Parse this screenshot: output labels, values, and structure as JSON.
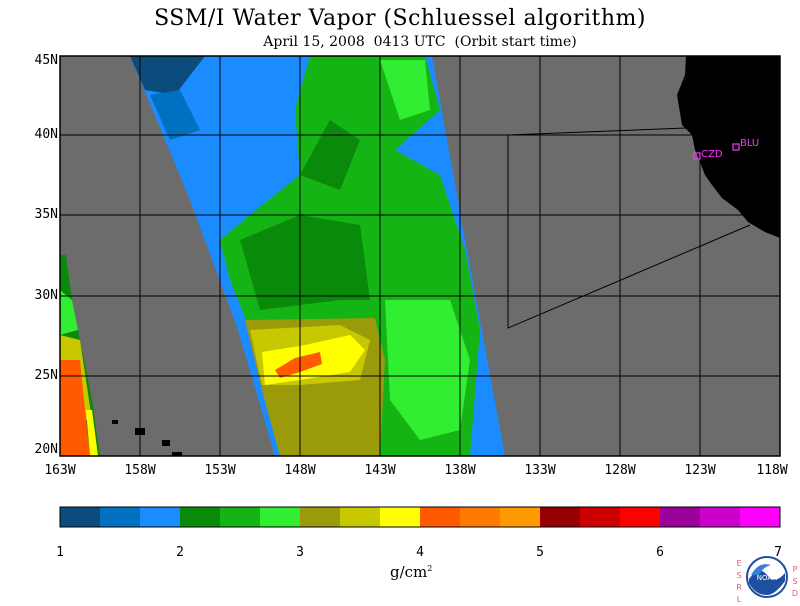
{
  "title": "SSM/I Water Vapor (Schluessel algorithm)",
  "subtitle": "April 15, 2008  0413 UTC  (Orbit start time)",
  "lat_labels": [
    "45N",
    "40N",
    "35N",
    "30N",
    "25N",
    "20N"
  ],
  "lon_labels": [
    "163W",
    "158W",
    "153W",
    "148W",
    "143W",
    "138W",
    "133W",
    "128W",
    "123W",
    "118W"
  ],
  "stations": [
    "CZD",
    "BLU"
  ],
  "legend": {
    "ticks": [
      "1",
      "2",
      "3",
      "4",
      "5",
      "6",
      "7"
    ],
    "unit": "g/cm",
    "unit_exp": "2",
    "colors": [
      "#0c4c7c",
      "#0070c0",
      "#1a8cff",
      "#0a8a0a",
      "#14b414",
      "#32ee32",
      "#9a9a0a",
      "#c8c800",
      "#ffff00",
      "#ff5a00",
      "#ff7a00",
      "#ff9a00",
      "#960000",
      "#cc0000",
      "#ff0000",
      "#9a009a",
      "#cc00cc",
      "#ff00ff"
    ]
  },
  "logo": {
    "left_letters": [
      "E",
      "S",
      "R",
      "L"
    ],
    "right_letters": [
      "P",
      "S",
      "D"
    ],
    "text": "NOAA"
  },
  "colors": {
    "ocean": "#6c6c6c",
    "land": "#000000",
    "station": "#ff33ff"
  }
}
